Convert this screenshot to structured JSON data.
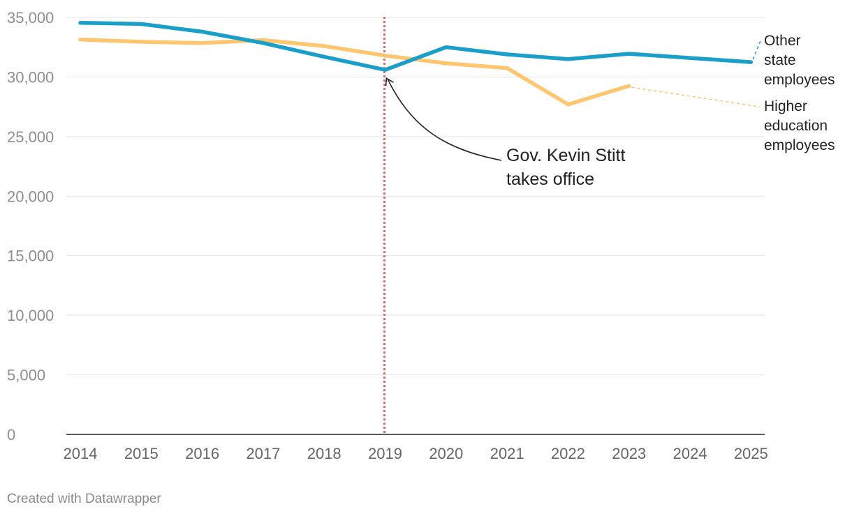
{
  "chart_data": {
    "type": "line",
    "title": "",
    "xlabel": "",
    "ylabel": "",
    "ylim": [
      0,
      35000
    ],
    "yticks": [
      0,
      5000,
      10000,
      15000,
      20000,
      25000,
      30000,
      35000
    ],
    "ytick_labels": [
      "0",
      "5,000",
      "10,000",
      "15,000",
      "20,000",
      "25,000",
      "30,000",
      "35,000"
    ],
    "categories": [
      "2014",
      "2015",
      "2016",
      "2017",
      "2018",
      "2019",
      "2020",
      "2021",
      "2022",
      "2023",
      "2024",
      "2025"
    ],
    "grid": true,
    "series": [
      {
        "name": "Other state employees",
        "label_lines": [
          "Other",
          "state",
          "employees"
        ],
        "color": "#1a9fcb",
        "values": [
          34550,
          34450,
          33800,
          32850,
          31700,
          30600,
          32500,
          31900,
          31500,
          31950,
          31600,
          31250
        ]
      },
      {
        "name": "Higher education employees",
        "label_lines": [
          "Higher",
          "education",
          "employees"
        ],
        "color": "#fec76f",
        "values": [
          33150,
          32950,
          32850,
          33100,
          32600,
          31800,
          31150,
          30750,
          27700,
          29250,
          null,
          null
        ],
        "projection_end": 27500
      }
    ],
    "reference_line": {
      "x": "2019",
      "color": "#e06b64"
    },
    "annotation": {
      "lines": [
        "Gov. Kevin Stitt",
        "takes office"
      ],
      "target_x": "2019",
      "target_value": 30600
    }
  },
  "footer": {
    "credit": "Created with Datawrapper"
  }
}
